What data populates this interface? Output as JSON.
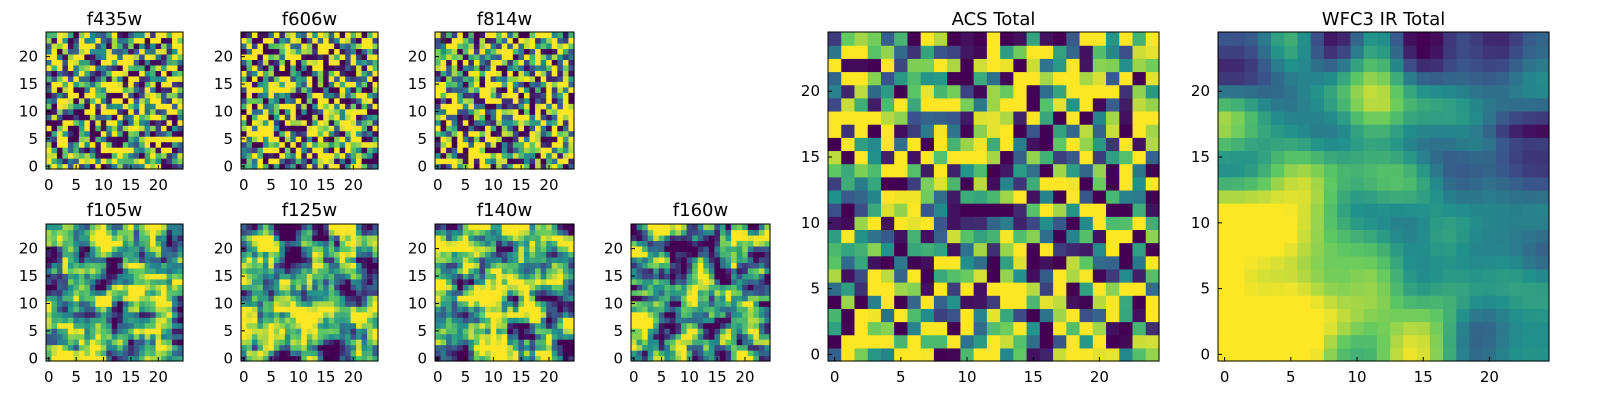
{
  "figure": {
    "colormap": "viridis",
    "colormap_stops": [
      "#440154",
      "#3b528b",
      "#21918c",
      "#5ec962",
      "#fde725"
    ]
  },
  "chart_data": [
    {
      "type": "heatmap",
      "title": "f435w",
      "grid_size": 25,
      "xlim": [
        0,
        24
      ],
      "ylim": [
        0,
        24
      ],
      "xticks": [
        0,
        5,
        10,
        15,
        20
      ],
      "yticks": [
        0,
        5,
        10,
        15,
        20
      ],
      "texture": "noise",
      "mean": 0.62,
      "spread": 0.22,
      "seed": 435
    },
    {
      "type": "heatmap",
      "title": "f606w",
      "grid_size": 25,
      "xlim": [
        0,
        24
      ],
      "ylim": [
        0,
        24
      ],
      "xticks": [
        0,
        5,
        10,
        15,
        20
      ],
      "yticks": [
        0,
        5,
        10,
        15,
        20
      ],
      "texture": "noise",
      "mean": 0.64,
      "spread": 0.22,
      "seed": 606
    },
    {
      "type": "heatmap",
      "title": "f814w",
      "grid_size": 25,
      "xlim": [
        0,
        24
      ],
      "ylim": [
        0,
        24
      ],
      "xticks": [
        0,
        5,
        10,
        15,
        20
      ],
      "yticks": [
        0,
        5,
        10,
        15,
        20
      ],
      "texture": "noise",
      "mean": 0.64,
      "spread": 0.22,
      "seed": 814
    },
    {
      "type": "heatmap",
      "title": "f105w",
      "grid_size": 25,
      "xlim": [
        0,
        24
      ],
      "ylim": [
        0,
        24
      ],
      "xticks": [
        0,
        5,
        10,
        15,
        20
      ],
      "yticks": [
        0,
        5,
        10,
        15,
        20
      ],
      "texture": "smooth",
      "mean": 0.55,
      "spread": 0.22,
      "seed": 105
    },
    {
      "type": "heatmap",
      "title": "f125w",
      "grid_size": 25,
      "xlim": [
        0,
        24
      ],
      "ylim": [
        0,
        24
      ],
      "xticks": [
        0,
        5,
        10,
        15,
        20
      ],
      "yticks": [
        0,
        5,
        10,
        15,
        20
      ],
      "texture": "smooth",
      "mean": 0.55,
      "spread": 0.22,
      "seed": 125
    },
    {
      "type": "heatmap",
      "title": "f140w",
      "grid_size": 25,
      "xlim": [
        0,
        24
      ],
      "ylim": [
        0,
        24
      ],
      "xticks": [
        0,
        5,
        10,
        15,
        20
      ],
      "yticks": [
        0,
        5,
        10,
        15,
        20
      ],
      "texture": "smooth",
      "mean": 0.55,
      "spread": 0.24,
      "seed": 140
    },
    {
      "type": "heatmap",
      "title": "f160w",
      "grid_size": 25,
      "xlim": [
        0,
        24
      ],
      "ylim": [
        0,
        24
      ],
      "xticks": [
        0,
        5,
        10,
        15,
        20
      ],
      "yticks": [
        0,
        5,
        10,
        15,
        20
      ],
      "texture": "smooth",
      "mean": 0.5,
      "spread": 0.24,
      "seed": 160
    },
    {
      "type": "heatmap",
      "title": "ACS Total",
      "grid_size": 25,
      "xlim": [
        0,
        24
      ],
      "ylim": [
        0,
        24
      ],
      "xticks": [
        0,
        5,
        10,
        15,
        20
      ],
      "yticks": [
        0,
        5,
        10,
        15,
        20
      ],
      "texture": "noise",
      "mean": 0.6,
      "spread": 0.2,
      "seed": 7
    },
    {
      "type": "heatmap",
      "title": "WFC3 IR Total",
      "grid_size": 25,
      "xlim": [
        0,
        24
      ],
      "ylim": [
        0,
        24
      ],
      "xticks": [
        0,
        5,
        10,
        15,
        20
      ],
      "yticks": [
        0,
        5,
        10,
        15,
        20
      ],
      "texture": "gradient",
      "mean": 0.55,
      "spread": 0.3,
      "seed": 3
    }
  ]
}
